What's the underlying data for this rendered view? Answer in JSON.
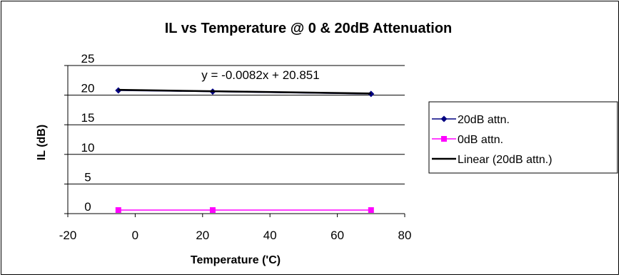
{
  "chart_data": {
    "type": "line",
    "title": "IL vs Temperature @ 0 & 20dB Attenuation",
    "xlabel": "Temperature ('C)",
    "ylabel": "IL (dB)",
    "xlim": [
      -20,
      80
    ],
    "ylim": [
      0,
      25
    ],
    "xticks": [
      -20,
      0,
      20,
      40,
      60,
      80
    ],
    "yticks": [
      0,
      5,
      10,
      15,
      20,
      25
    ],
    "grid": "horizontal",
    "legend_position": "right",
    "series": [
      {
        "name": "20dB attn.",
        "x": [
          -5,
          23,
          70
        ],
        "y": [
          20.8,
          20.6,
          20.2
        ],
        "color": "#000080",
        "marker": "diamond"
      },
      {
        "name": "0dB attn.",
        "x": [
          -5,
          23,
          70
        ],
        "y": [
          0.6,
          0.6,
          0.6
        ],
        "color": "#FF00FF",
        "marker": "square"
      }
    ],
    "trendline": {
      "name": "Linear (20dB attn.)",
      "of_series": "20dB attn.",
      "slope": -0.0082,
      "intercept": 20.851,
      "color": "#000000",
      "equation_label": "y = -0.0082x + 20.851"
    }
  }
}
